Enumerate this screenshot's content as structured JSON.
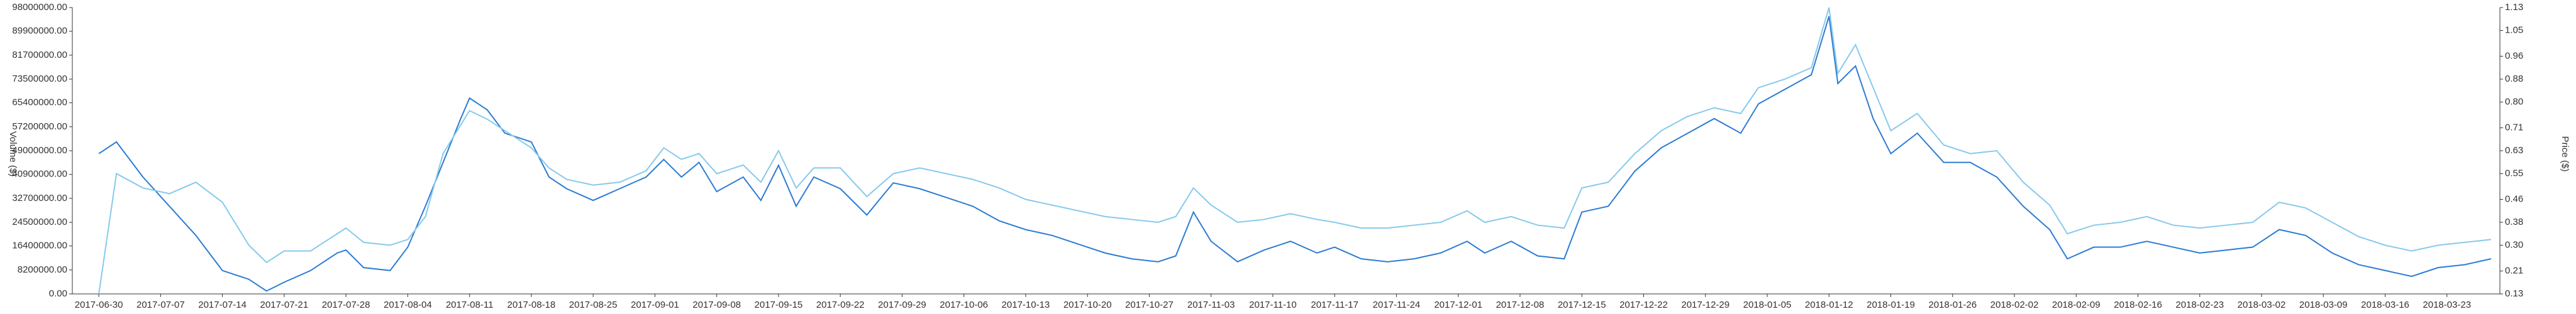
{
  "chart_data": {
    "type": "line",
    "y_label": "Volume ($)",
    "y2_label": "Price ($)",
    "x": [
      "2017-06-30",
      "2017-07-02",
      "2017-07-05",
      "2017-07-08",
      "2017-07-11",
      "2017-07-14",
      "2017-07-17",
      "2017-07-19",
      "2017-07-21",
      "2017-07-24",
      "2017-07-27",
      "2017-07-28",
      "2017-07-30",
      "2017-08-02",
      "2017-08-04",
      "2017-08-06",
      "2017-08-08",
      "2017-08-10",
      "2017-08-11",
      "2017-08-13",
      "2017-08-15",
      "2017-08-18",
      "2017-08-20",
      "2017-08-22",
      "2017-08-25",
      "2017-08-28",
      "2017-08-31",
      "2017-09-02",
      "2017-09-04",
      "2017-09-06",
      "2017-09-08",
      "2017-09-11",
      "2017-09-13",
      "2017-09-15",
      "2017-09-17",
      "2017-09-19",
      "2017-09-22",
      "2017-09-25",
      "2017-09-28",
      "2017-10-01",
      "2017-10-04",
      "2017-10-07",
      "2017-10-10",
      "2017-10-13",
      "2017-10-16",
      "2017-10-19",
      "2017-10-22",
      "2017-10-25",
      "2017-10-28",
      "2017-10-30",
      "2017-11-01",
      "2017-11-03",
      "2017-11-06",
      "2017-11-09",
      "2017-11-12",
      "2017-11-15",
      "2017-11-17",
      "2017-11-20",
      "2017-11-23",
      "2017-11-26",
      "2017-11-29",
      "2017-12-02",
      "2017-12-04",
      "2017-12-07",
      "2017-12-10",
      "2017-12-13",
      "2017-12-15",
      "2017-12-18",
      "2017-12-21",
      "2017-12-24",
      "2017-12-27",
      "2017-12-30",
      "2018-01-02",
      "2018-01-04",
      "2018-01-07",
      "2018-01-10",
      "2018-01-12",
      "2018-01-13",
      "2018-01-15",
      "2018-01-17",
      "2018-01-19",
      "2018-01-22",
      "2018-01-25",
      "2018-01-28",
      "2018-01-31",
      "2018-02-03",
      "2018-02-06",
      "2018-02-08",
      "2018-02-11",
      "2018-02-14",
      "2018-02-17",
      "2018-02-20",
      "2018-02-23",
      "2018-02-26",
      "2018-03-01",
      "2018-03-04",
      "2018-03-07",
      "2018-03-10",
      "2018-03-13",
      "2018-03-16",
      "2018-03-19",
      "2018-03-22",
      "2018-03-25",
      "2018-03-28"
    ],
    "series": [
      {
        "color": "#2b7bd4",
        "axis": "y",
        "values": [
          48000000,
          52000000,
          40000000,
          30000000,
          20000000,
          8000000,
          5000000,
          1000000,
          4000000,
          8000000,
          14000000,
          15000000,
          9000000,
          8000000,
          16000000,
          30000000,
          45000000,
          60000000,
          67000000,
          63000000,
          55000000,
          52000000,
          40000000,
          36000000,
          32000000,
          36000000,
          40000000,
          46000000,
          40000000,
          45000000,
          35000000,
          40000000,
          32000000,
          44000000,
          30000000,
          40000000,
          36000000,
          27000000,
          38000000,
          36000000,
          33000000,
          30000000,
          25000000,
          22000000,
          20000000,
          17000000,
          14000000,
          12000000,
          11000000,
          13000000,
          28000000,
          18000000,
          11000000,
          15000000,
          18000000,
          14000000,
          16000000,
          12000000,
          11000000,
          12000000,
          14000000,
          18000000,
          14000000,
          18000000,
          13000000,
          12000000,
          28000000,
          30000000,
          42000000,
          50000000,
          55000000,
          60000000,
          55000000,
          65000000,
          70000000,
          75000000,
          95000000,
          72000000,
          78000000,
          60000000,
          48000000,
          55000000,
          45000000,
          45000000,
          40000000,
          30000000,
          22000000,
          12000000,
          16000000,
          16000000,
          18000000,
          16000000,
          14000000,
          15000000,
          16000000,
          22000000,
          20000000,
          14000000,
          10000000,
          8000000,
          6000000,
          9000000,
          10000000,
          12000000
        ]
      },
      {
        "color": "#86c9ec",
        "axis": "y2",
        "values": [
          0.13,
          0.55,
          0.5,
          0.48,
          0.52,
          0.45,
          0.3,
          0.24,
          0.28,
          0.28,
          0.34,
          0.36,
          0.31,
          0.3,
          0.32,
          0.4,
          0.62,
          0.72,
          0.77,
          0.74,
          0.7,
          0.64,
          0.57,
          0.53,
          0.51,
          0.52,
          0.56,
          0.64,
          0.6,
          0.62,
          0.55,
          0.58,
          0.52,
          0.63,
          0.5,
          0.57,
          0.57,
          0.47,
          0.55,
          0.57,
          0.55,
          0.53,
          0.5,
          0.46,
          0.44,
          0.42,
          0.4,
          0.39,
          0.38,
          0.4,
          0.5,
          0.44,
          0.38,
          0.39,
          0.41,
          0.39,
          0.38,
          0.36,
          0.36,
          0.37,
          0.38,
          0.42,
          0.38,
          0.4,
          0.37,
          0.36,
          0.5,
          0.52,
          0.62,
          0.7,
          0.75,
          0.78,
          0.76,
          0.85,
          0.88,
          0.92,
          1.13,
          0.9,
          1.0,
          0.85,
          0.7,
          0.76,
          0.65,
          0.62,
          0.63,
          0.52,
          0.44,
          0.34,
          0.37,
          0.38,
          0.4,
          0.37,
          0.36,
          0.37,
          0.38,
          0.45,
          0.43,
          0.38,
          0.33,
          0.3,
          0.28,
          0.3,
          0.31,
          0.32
        ]
      }
    ],
    "xlim": [
      "2017-06-27",
      "2018-03-29"
    ],
    "xticks": [
      "2017-06-30",
      "2017-07-07",
      "2017-07-14",
      "2017-07-21",
      "2017-07-28",
      "2017-08-04",
      "2017-08-11",
      "2017-08-18",
      "2017-08-25",
      "2017-09-01",
      "2017-09-08",
      "2017-09-15",
      "2017-09-22",
      "2017-09-29",
      "2017-10-06",
      "2017-10-13",
      "2017-10-20",
      "2017-10-27",
      "2017-11-03",
      "2017-11-10",
      "2017-11-17",
      "2017-11-24",
      "2017-12-01",
      "2017-12-08",
      "2017-12-15",
      "2017-12-22",
      "2017-12-29",
      "2018-01-05",
      "2018-01-12",
      "2018-01-19",
      "2018-01-26",
      "2018-02-02",
      "2018-02-09",
      "2018-02-16",
      "2018-02-23",
      "2018-03-02",
      "2018-03-09",
      "2018-03-16",
      "2018-03-23"
    ],
    "ylim": [
      0,
      98000000
    ],
    "yticks": [
      {
        "value": 0,
        "label": "0.00"
      },
      {
        "value": 8200000,
        "label": "8200000.00"
      },
      {
        "value": 16400000,
        "label": "16400000.00"
      },
      {
        "value": 24500000,
        "label": "24500000.00"
      },
      {
        "value": 32700000,
        "label": "32700000.00"
      },
      {
        "value": 40900000,
        "label": "40900000.00"
      },
      {
        "value": 49000000,
        "label": "49000000.00"
      },
      {
        "value": 57200000,
        "label": "57200000.00"
      },
      {
        "value": 65400000,
        "label": "65400000.00"
      },
      {
        "value": 73500000,
        "label": "73500000.00"
      },
      {
        "value": 81700000,
        "label": "81700000.00"
      },
      {
        "value": 89900000,
        "label": "89900000.00"
      },
      {
        "value": 98000000,
        "label": "98000000.00"
      }
    ],
    "y2lim": [
      0.13,
      1.13
    ],
    "y2ticks": [
      0.13,
      0.21,
      {
        "value": 0.3,
        "label": "0.30"
      },
      0.38,
      0.46,
      0.55,
      0.63,
      0.71,
      {
        "value": 0.8,
        "label": "0.80"
      },
      0.88,
      0.96,
      1.05,
      1.13
    ],
    "grid": false
  }
}
